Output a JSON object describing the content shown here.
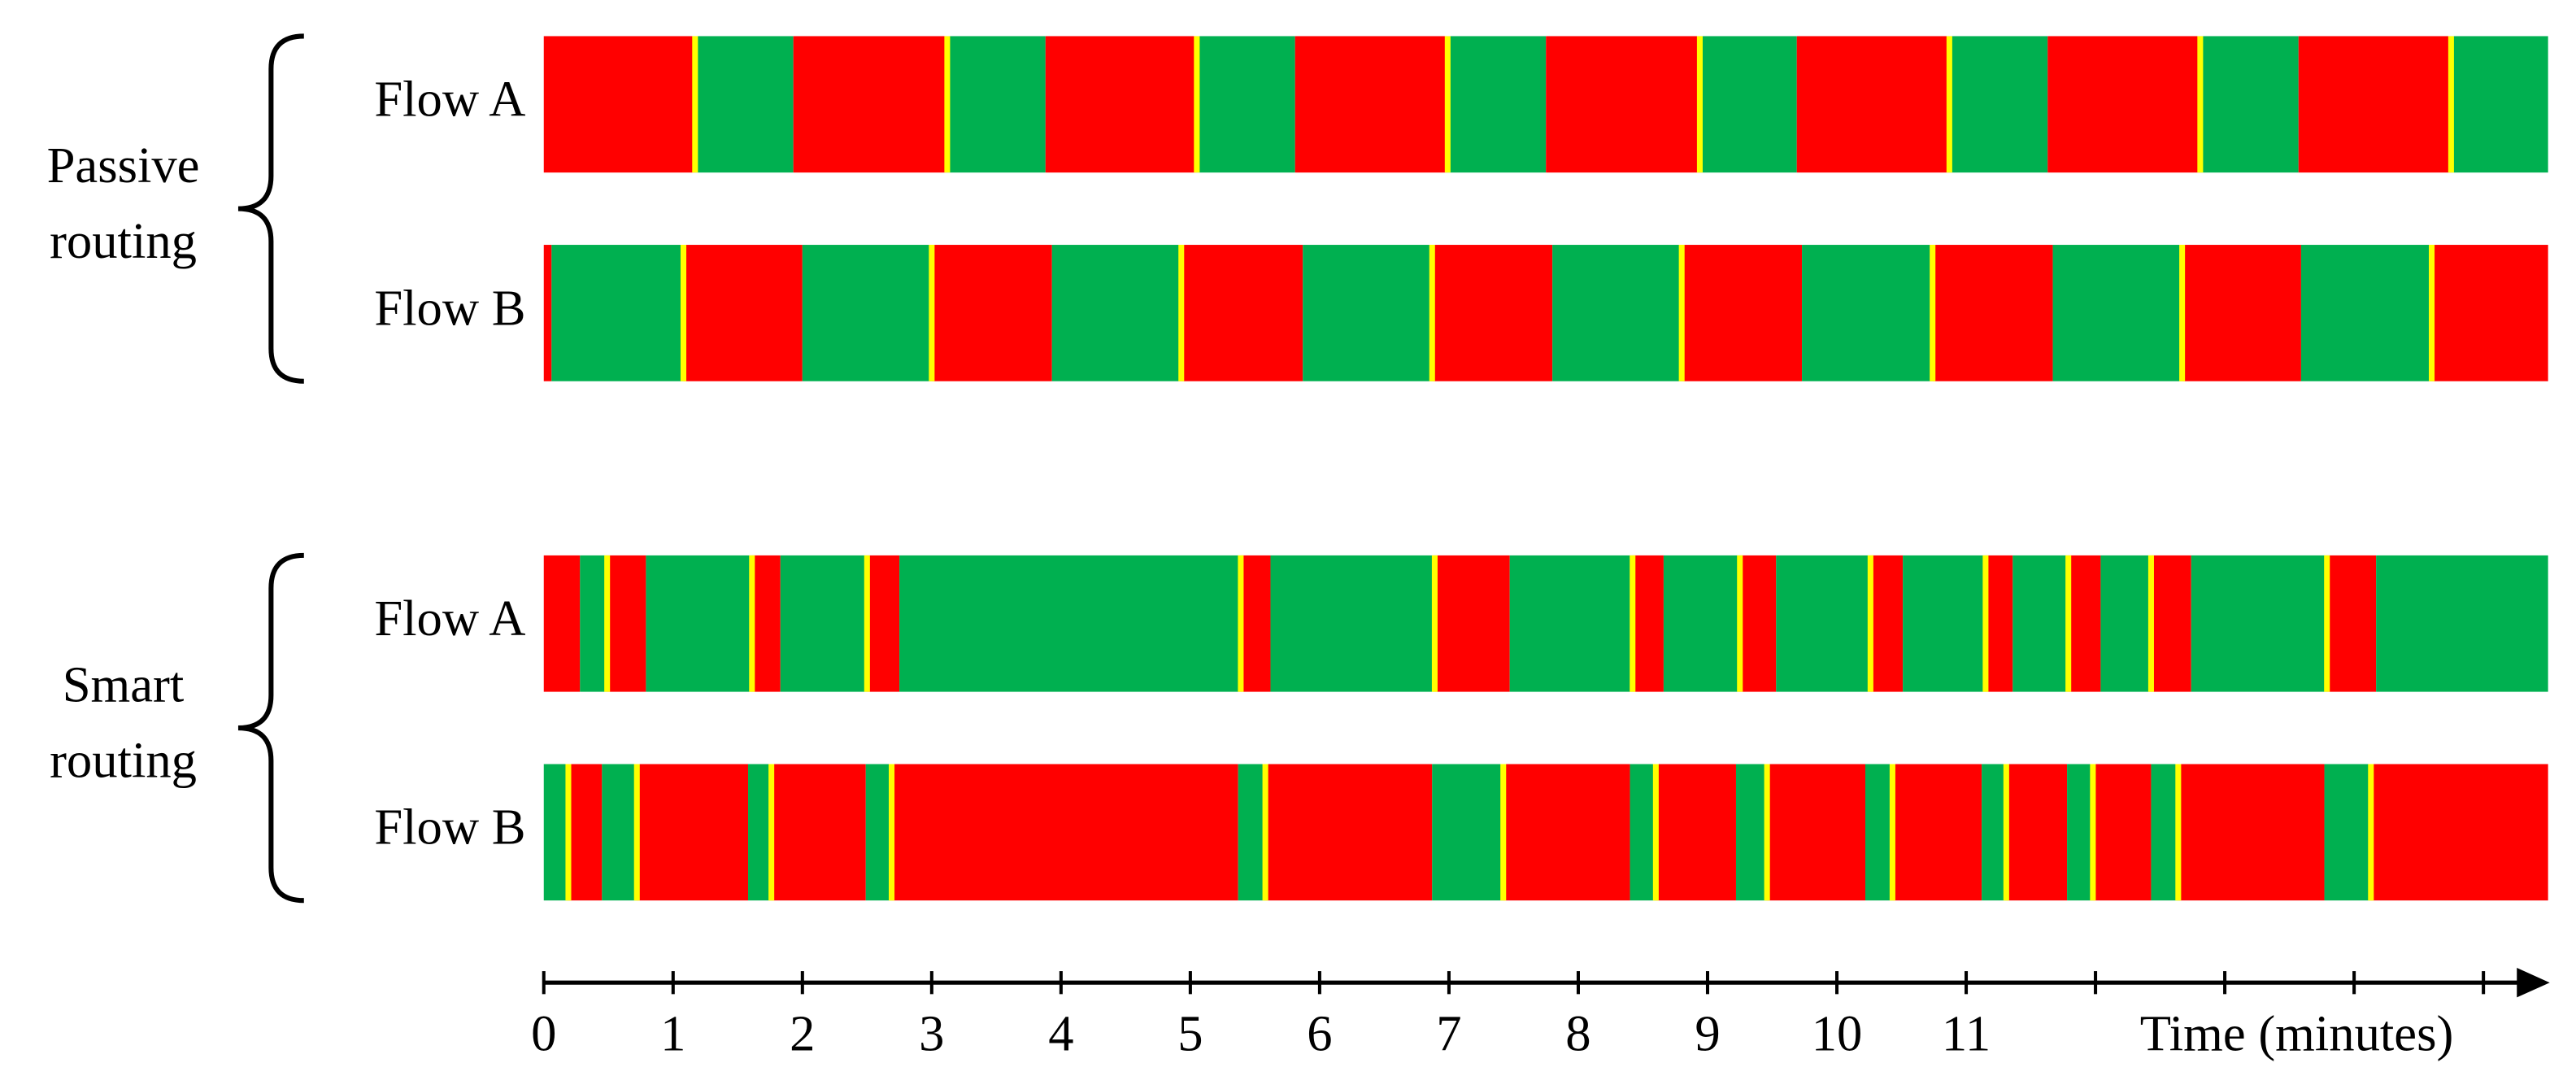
{
  "chart_data": {
    "type": "timeline",
    "xlabel": "Time (minutes)",
    "xlim": [
      0,
      15.5
    ],
    "xticks": [
      0,
      1,
      2,
      3,
      4,
      5,
      6,
      7,
      8,
      9,
      10,
      11,
      {
        "value": 12,
        "label": null
      },
      {
        "value": 13,
        "label": null
      },
      {
        "value": 14,
        "label": null
      },
      {
        "value": 15,
        "label": null
      }
    ],
    "colors": [
      "#ff0000",
      "#00b050"
    ],
    "switch_color": "#ffff00",
    "groups": [
      {
        "name": "Passive routing",
        "flows": [
          {
            "name": "Flow A",
            "start_color": "#ff0000",
            "starts": [
              0,
              1.17,
              1.93,
              3.12,
              3.88,
              5.05,
              5.81,
              6.99,
              7.75,
              8.94,
              9.69,
              10.87,
              11.63,
              12.81,
              13.57,
              14.75
            ],
            "switches": [
              1.17,
              3.12,
              5.05,
              6.99,
              8.94,
              10.87,
              12.81,
              14.75
            ]
          },
          {
            "name": "Flow B",
            "start_color": "#ff0000",
            "starts": [
              0,
              0.06,
              1.08,
              2.0,
              3.0,
              3.93,
              4.93,
              5.87,
              6.87,
              7.8,
              8.8,
              9.73,
              10.74,
              11.67,
              12.67,
              13.59,
              14.6
            ],
            "switches": [
              1.08,
              3.0,
              4.93,
              6.87,
              8.8,
              10.74,
              12.67,
              14.6
            ]
          }
        ]
      },
      {
        "name": "Smart routing",
        "flows": [
          {
            "name": "Flow A",
            "start_color": "#ff0000",
            "starts": [
              0,
              0.28,
              0.49,
              0.79,
              1.61,
              1.83,
              2.5,
              2.75,
              5.39,
              5.62,
              6.89,
              7.47,
              8.42,
              8.66,
              9.25,
              9.53,
              10.26,
              10.51,
              11.15,
              11.36,
              11.79,
              12.04,
              12.43,
              12.74,
              13.79,
              14.17
            ],
            "switches": [
              0.49,
              1.61,
              2.5,
              5.39,
              6.89,
              8.42,
              9.25,
              10.26,
              11.15,
              11.79,
              12.43,
              13.79
            ]
          },
          {
            "name": "Flow B",
            "start_color": "#00b050",
            "starts": [
              0,
              0.19,
              0.45,
              0.72,
              1.58,
              1.76,
              2.49,
              2.69,
              5.37,
              5.58,
              6.87,
              7.42,
              8.4,
              8.6,
              9.22,
              9.46,
              10.22,
              10.43,
              11.12,
              11.31,
              11.78,
              11.98,
              12.43,
              12.64,
              13.77,
              14.13
            ],
            "switches": [
              0.19,
              0.72,
              1.76,
              2.69,
              5.58,
              7.42,
              8.6,
              9.46,
              10.43,
              11.31,
              11.98,
              12.64,
              14.13
            ]
          }
        ]
      }
    ]
  }
}
